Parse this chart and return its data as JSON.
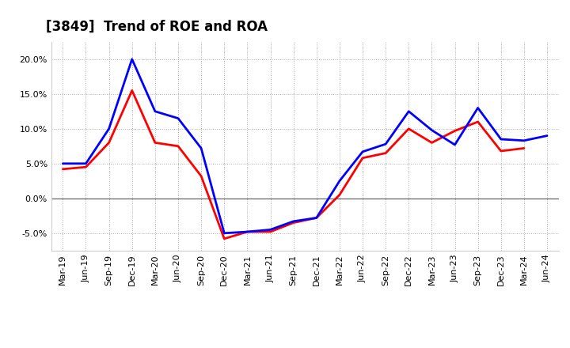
{
  "title": "[3849]  Trend of ROE and ROA",
  "labels": [
    "Mar-19",
    "Jun-19",
    "Sep-19",
    "Dec-19",
    "Mar-20",
    "Jun-20",
    "Sep-20",
    "Dec-20",
    "Mar-21",
    "Jun-21",
    "Sep-21",
    "Dec-21",
    "Mar-22",
    "Jun-22",
    "Sep-22",
    "Dec-22",
    "Mar-23",
    "Jun-23",
    "Sep-23",
    "Dec-23",
    "Mar-24",
    "Jun-24"
  ],
  "ROE": [
    4.2,
    4.5,
    8.0,
    15.5,
    8.0,
    7.5,
    3.2,
    -5.8,
    -4.8,
    -4.8,
    -3.5,
    -2.8,
    0.5,
    5.8,
    6.5,
    10.0,
    8.0,
    9.7,
    11.0,
    6.8,
    7.2,
    null
  ],
  "ROA": [
    5.0,
    5.0,
    10.0,
    20.0,
    12.5,
    11.5,
    7.2,
    -5.0,
    -4.8,
    -4.5,
    -3.3,
    -2.8,
    2.5,
    6.7,
    7.8,
    12.5,
    9.8,
    7.7,
    13.0,
    8.5,
    8.3,
    9.0
  ],
  "roe_color": "#ff0000",
  "roa_color": "#0000ff",
  "ylim": [
    -7.5,
    22.5
  ],
  "yticks": [
    -5.0,
    0.0,
    5.0,
    10.0,
    15.0,
    20.0
  ],
  "background_color": "#ffffff",
  "grid_color": "#aaaaaa",
  "title_fontsize": 12,
  "linewidth": 2.0,
  "legend_fontsize": 9,
  "tick_fontsize": 8
}
